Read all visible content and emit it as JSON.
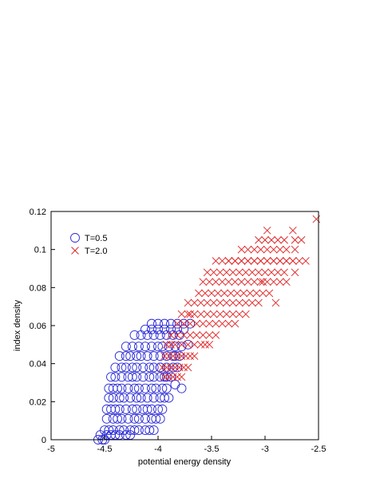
{
  "chart_data": {
    "type": "scatter",
    "xlabel": "potential energy density",
    "ylabel": "index density",
    "xlim": [
      -5,
      -2.5
    ],
    "ylim": [
      0,
      0.12
    ],
    "xticks": [
      "-5",
      "-4.5",
      "-4",
      "-3.5",
      "-3",
      "-2.5"
    ],
    "yticks": [
      "0",
      "0.02",
      "0.04",
      "0.06",
      "0.08",
      "0.1",
      "0.12"
    ],
    "grid": false,
    "legend_position": "top-left",
    "series": [
      {
        "name": "T=0.5",
        "marker": "circle",
        "color": "#2a2ad8",
        "x": [
          -4.56,
          -4.52,
          -4.5,
          -4.54,
          -4.48,
          -4.44,
          -4.4,
          -4.36,
          -4.3,
          -4.26,
          -4.5,
          -4.46,
          -4.42,
          -4.36,
          -4.32,
          -4.26,
          -4.22,
          -4.18,
          -4.12,
          -4.08,
          -4.04,
          -4.48,
          -4.42,
          -4.38,
          -4.34,
          -4.28,
          -4.22,
          -4.18,
          -4.12,
          -4.06,
          -4.02,
          -3.98,
          -4.48,
          -4.44,
          -4.4,
          -4.36,
          -4.3,
          -4.24,
          -4.2,
          -4.14,
          -4.1,
          -4.06,
          -4.0,
          -3.96,
          -4.46,
          -4.42,
          -4.36,
          -4.32,
          -4.26,
          -4.2,
          -4.16,
          -4.1,
          -4.04,
          -3.98,
          -3.94,
          -4.46,
          -4.42,
          -4.38,
          -4.34,
          -4.28,
          -4.22,
          -4.18,
          -4.12,
          -4.06,
          -4.02,
          -3.96,
          -3.92,
          -4.44,
          -4.4,
          -4.34,
          -4.28,
          -4.24,
          -4.2,
          -4.14,
          -4.08,
          -4.04,
          -3.98,
          -3.94,
          -3.88,
          -4.4,
          -4.34,
          -4.3,
          -4.24,
          -4.2,
          -4.14,
          -4.08,
          -4.04,
          -3.98,
          -3.92,
          -3.86,
          -3.82,
          -4.36,
          -4.3,
          -4.26,
          -4.2,
          -4.16,
          -4.1,
          -4.04,
          -3.98,
          -3.92,
          -3.86,
          -3.8,
          -4.3,
          -4.24,
          -4.18,
          -4.12,
          -4.06,
          -4.0,
          -3.96,
          -3.9,
          -3.84,
          -3.78,
          -4.22,
          -4.16,
          -4.1,
          -4.04,
          -3.98,
          -3.92,
          -3.86,
          -3.8,
          -4.12,
          -4.06,
          -4.0,
          -3.94,
          -3.88,
          -3.82,
          -3.76,
          -4.06,
          -4.0,
          -3.94,
          -3.88,
          -3.82,
          -3.76,
          -3.7,
          -3.98,
          -3.92,
          -3.84,
          -3.78,
          -3.72,
          -3.9,
          -3.84
        ],
        "y": [
          0,
          0,
          0,
          0.0025,
          0.0025,
          0.0025,
          0.0025,
          0.0025,
          0.0025,
          0.0025,
          0.005,
          0.005,
          0.005,
          0.005,
          0.005,
          0.005,
          0.005,
          0.005,
          0.005,
          0.005,
          0.005,
          0.011,
          0.011,
          0.011,
          0.011,
          0.011,
          0.011,
          0.011,
          0.011,
          0.011,
          0.011,
          0.011,
          0.016,
          0.016,
          0.016,
          0.016,
          0.016,
          0.016,
          0.016,
          0.016,
          0.016,
          0.016,
          0.016,
          0.016,
          0.022,
          0.022,
          0.022,
          0.022,
          0.022,
          0.022,
          0.022,
          0.022,
          0.022,
          0.022,
          0.022,
          0.027,
          0.027,
          0.027,
          0.027,
          0.027,
          0.027,
          0.027,
          0.027,
          0.027,
          0.027,
          0.027,
          0.027,
          0.033,
          0.033,
          0.033,
          0.033,
          0.033,
          0.033,
          0.033,
          0.033,
          0.033,
          0.033,
          0.033,
          0.033,
          0.038,
          0.038,
          0.038,
          0.038,
          0.038,
          0.038,
          0.038,
          0.038,
          0.038,
          0.038,
          0.038,
          0.038,
          0.044,
          0.044,
          0.044,
          0.044,
          0.044,
          0.044,
          0.044,
          0.044,
          0.044,
          0.044,
          0.044,
          0.049,
          0.049,
          0.049,
          0.049,
          0.049,
          0.049,
          0.049,
          0.049,
          0.049,
          0.049,
          0.055,
          0.055,
          0.055,
          0.055,
          0.055,
          0.055,
          0.055,
          0.055,
          0.058,
          0.058,
          0.058,
          0.058,
          0.058,
          0.058,
          0.058,
          0.061,
          0.061,
          0.061,
          0.061,
          0.061,
          0.061,
          0.061,
          0.038,
          0.033,
          0.044,
          0.027,
          0.05,
          0.022,
          0.029
        ]
      },
      {
        "name": "T=2.0",
        "marker": "x",
        "color": "#e02020",
        "x": [
          -3.94,
          -3.9,
          -3.86,
          -3.82,
          -3.78,
          -3.96,
          -3.92,
          -3.88,
          -3.84,
          -3.8,
          -3.76,
          -3.72,
          -3.94,
          -3.9,
          -3.86,
          -3.82,
          -3.78,
          -3.74,
          -3.7,
          -3.66,
          -3.92,
          -3.88,
          -3.84,
          -3.78,
          -3.72,
          -3.66,
          -3.6,
          -3.56,
          -3.52,
          -3.88,
          -3.82,
          -3.76,
          -3.7,
          -3.64,
          -3.58,
          -3.52,
          -3.46,
          -3.82,
          -3.76,
          -3.7,
          -3.64,
          -3.58,
          -3.52,
          -3.46,
          -3.4,
          -3.34,
          -3.28,
          -3.78,
          -3.72,
          -3.66,
          -3.6,
          -3.54,
          -3.48,
          -3.42,
          -3.36,
          -3.3,
          -3.24,
          -3.18,
          -3.72,
          -3.66,
          -3.6,
          -3.54,
          -3.48,
          -3.42,
          -3.36,
          -3.3,
          -3.24,
          -3.18,
          -3.12,
          -3.06,
          -3.7,
          -3.62,
          -3.56,
          -3.5,
          -3.44,
          -3.38,
          -3.32,
          -3.26,
          -3.2,
          -3.14,
          -3.08,
          -3.02,
          -3.58,
          -3.52,
          -3.46,
          -3.4,
          -3.34,
          -3.28,
          -3.22,
          -3.16,
          -3.1,
          -3.04,
          -2.98,
          -2.92,
          -2.86,
          -2.8,
          -3.54,
          -3.48,
          -3.42,
          -3.36,
          -3.3,
          -3.24,
          -3.18,
          -3.12,
          -3.06,
          -3.0,
          -2.94,
          -2.88,
          -2.82,
          -3.46,
          -3.4,
          -3.34,
          -3.28,
          -3.22,
          -3.16,
          -3.1,
          -3.04,
          -2.98,
          -2.92,
          -2.86,
          -2.8,
          -2.74,
          -3.34,
          -3.28,
          -3.22,
          -3.16,
          -3.1,
          -3.04,
          -2.98,
          -2.92,
          -2.86,
          -2.8,
          -2.74,
          -3.22,
          -3.16,
          -3.1,
          -3.04,
          -2.98,
          -2.92,
          -2.86,
          -2.8,
          -3.06,
          -3.0,
          -2.94,
          -2.88,
          -2.82,
          -3.02,
          -2.96,
          -2.9,
          -2.72,
          -2.66,
          -2.72,
          -2.68,
          -2.62,
          -2.98,
          -2.52,
          -2.74,
          -2.72
        ],
        "y": [
          0.033,
          0.033,
          0.033,
          0.033,
          0.033,
          0.038,
          0.038,
          0.038,
          0.038,
          0.038,
          0.038,
          0.038,
          0.044,
          0.044,
          0.044,
          0.044,
          0.044,
          0.044,
          0.044,
          0.044,
          0.05,
          0.05,
          0.05,
          0.05,
          0.05,
          0.05,
          0.05,
          0.05,
          0.05,
          0.055,
          0.055,
          0.055,
          0.055,
          0.055,
          0.055,
          0.055,
          0.055,
          0.061,
          0.061,
          0.061,
          0.061,
          0.061,
          0.061,
          0.061,
          0.061,
          0.061,
          0.061,
          0.066,
          0.066,
          0.066,
          0.066,
          0.066,
          0.066,
          0.066,
          0.066,
          0.066,
          0.066,
          0.066,
          0.072,
          0.072,
          0.072,
          0.072,
          0.072,
          0.072,
          0.072,
          0.072,
          0.072,
          0.072,
          0.072,
          0.072,
          0.066,
          0.077,
          0.077,
          0.077,
          0.077,
          0.077,
          0.077,
          0.077,
          0.077,
          0.077,
          0.077,
          0.077,
          0.083,
          0.083,
          0.083,
          0.083,
          0.083,
          0.083,
          0.083,
          0.083,
          0.083,
          0.083,
          0.083,
          0.083,
          0.083,
          0.083,
          0.088,
          0.088,
          0.088,
          0.088,
          0.088,
          0.088,
          0.088,
          0.088,
          0.088,
          0.088,
          0.088,
          0.088,
          0.088,
          0.094,
          0.094,
          0.094,
          0.094,
          0.094,
          0.094,
          0.094,
          0.094,
          0.094,
          0.094,
          0.094,
          0.094,
          0.094,
          0.094,
          0.094,
          0.094,
          0.094,
          0.094,
          0.094,
          0.094,
          0.094,
          0.094,
          0.094,
          0.094,
          0.1,
          0.1,
          0.1,
          0.1,
          0.1,
          0.1,
          0.1,
          0.1,
          0.105,
          0.105,
          0.105,
          0.105,
          0.105,
          0.083,
          0.077,
          0.072,
          0.1,
          0.105,
          0.088,
          0.094,
          0.094,
          0.11,
          0.116,
          0.11,
          0.105
        ]
      }
    ]
  }
}
